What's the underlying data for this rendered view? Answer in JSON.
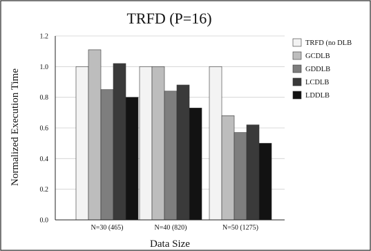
{
  "chart_data": {
    "type": "bar",
    "title": "TRFD (P=16)",
    "xlabel": "Data Size",
    "ylabel": "Normalized Execution Time",
    "ylim": [
      0,
      1.2
    ],
    "yticks": [
      "0.0",
      "0.2",
      "0.4",
      "0.6",
      "0.8",
      "1.0",
      "1.2"
    ],
    "categories": [
      "N=30 (465)",
      "N=40 (820)",
      "N=50 (1275)"
    ],
    "legend_position": "right",
    "series": [
      {
        "name": "TRFD (no DLB",
        "values": [
          1.0,
          1.0,
          1.0
        ],
        "color": "#f3f3f3"
      },
      {
        "name": "GCDLB",
        "values": [
          1.11,
          1.0,
          0.68
        ],
        "color": "#bdbdbd"
      },
      {
        "name": "GDDLB",
        "values": [
          0.85,
          0.84,
          0.57
        ],
        "color": "#7e7e7e"
      },
      {
        "name": "LCDLB",
        "values": [
          1.02,
          0.88,
          0.62
        ],
        "color": "#3a3a3a"
      },
      {
        "name": "LDDLB",
        "values": [
          0.8,
          0.73,
          0.5
        ],
        "color": "#121212"
      }
    ]
  }
}
